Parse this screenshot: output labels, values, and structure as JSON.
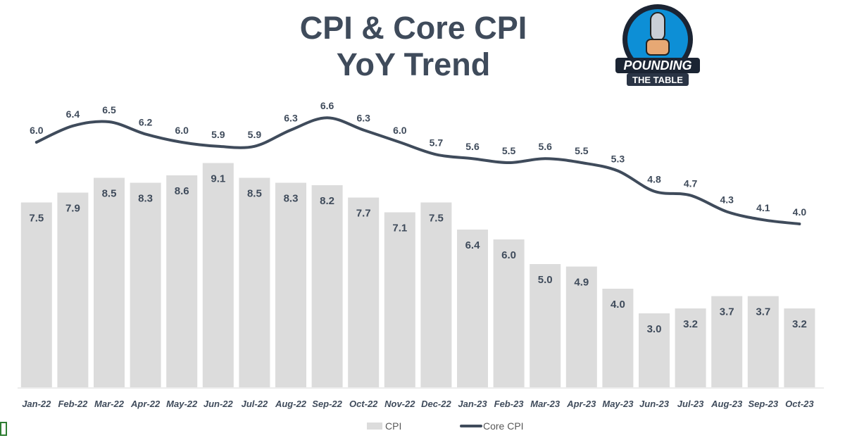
{
  "title_line1": "CPI & Core CPI",
  "title_line2": "YoY Trend",
  "logo": {
    "line1": "POUNDING",
    "line2": "THE TABLE",
    "icon": "microphone-fist-icon"
  },
  "colors": {
    "cpi": "#dcdcdc",
    "core": "#3f4b5b",
    "text": "#3f4b5b"
  },
  "chart_data": {
    "type": "bar",
    "categories": [
      "Jan-22",
      "Feb-22",
      "Mar-22",
      "Apr-22",
      "May-22",
      "Jun-22",
      "Jul-22",
      "Aug-22",
      "Sep-22",
      "Oct-22",
      "Nov-22",
      "Dec-22",
      "Jan-23",
      "Feb-23",
      "Mar-23",
      "Apr-23",
      "May-23",
      "Jun-23",
      "Jul-23",
      "Aug-23",
      "Sep-23",
      "Oct-23"
    ],
    "series": [
      {
        "name": "CPI",
        "type": "bar",
        "values": [
          7.5,
          7.9,
          8.5,
          8.3,
          8.6,
          9.1,
          8.5,
          8.3,
          8.2,
          7.7,
          7.1,
          7.5,
          6.4,
          6.0,
          5.0,
          4.9,
          4.0,
          3.0,
          3.2,
          3.7,
          3.7,
          3.2
        ]
      },
      {
        "name": "Core CPI",
        "type": "line",
        "values": [
          6.0,
          6.4,
          6.5,
          6.2,
          6.0,
          5.9,
          5.9,
          6.3,
          6.6,
          6.3,
          6.0,
          5.7,
          5.6,
          5.5,
          5.6,
          5.5,
          5.3,
          4.8,
          4.7,
          4.3,
          4.1,
          4.0
        ]
      }
    ],
    "legend_position": "bottom",
    "grid": false
  }
}
